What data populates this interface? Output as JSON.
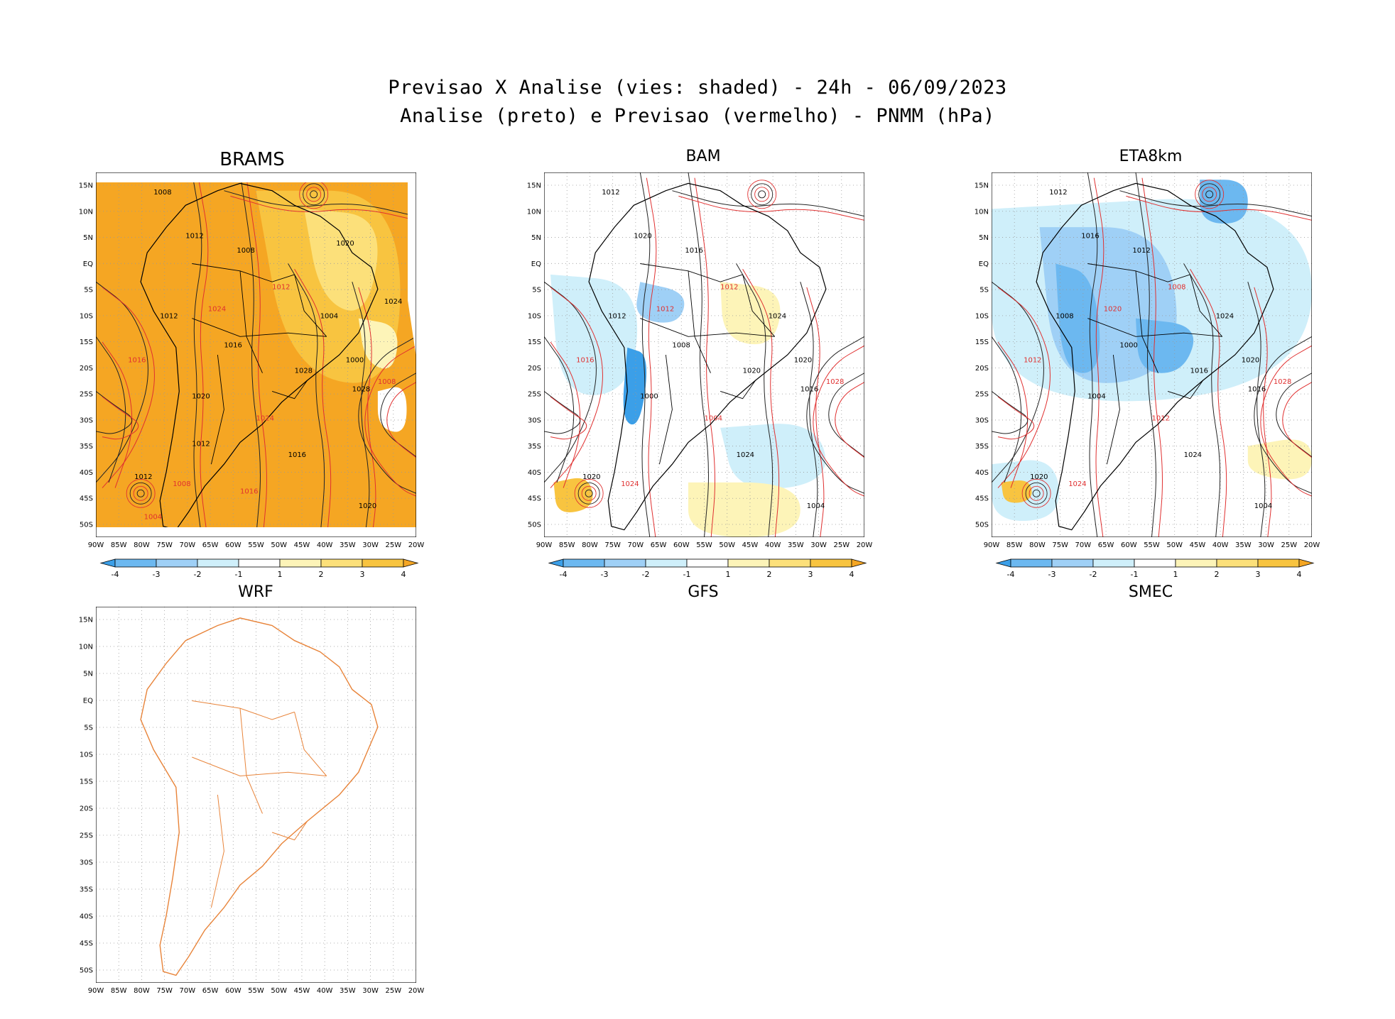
{
  "header": {
    "line1": "Previsao X Analise (vies: shaded) - 24h - 06/09/2023",
    "line2": "Analise (preto) e Previsao (vermelho) - PNMM (hPa)"
  },
  "axes": {
    "lat_labels": [
      "15N",
      "10N",
      "5N",
      "EQ",
      "5S",
      "10S",
      "15S",
      "20S",
      "25S",
      "30S",
      "35S",
      "40S",
      "45S",
      "50S"
    ],
    "lon_labels": [
      "90W",
      "85W",
      "80W",
      "75W",
      "70W",
      "65W",
      "60W",
      "55W",
      "50W",
      "45W",
      "40W",
      "35W",
      "30W",
      "25W",
      "20W"
    ]
  },
  "colorbar": {
    "ticks": [
      "-4",
      "-3",
      "-2",
      "-1",
      "1",
      "2",
      "3",
      "4"
    ],
    "colors": [
      "#3b9fe8",
      "#6cb8f0",
      "#9fd0f6",
      "#cfeffa",
      "#ffffff",
      "#fdf4b8",
      "#fce07a",
      "#f8c440",
      "#f5a623"
    ]
  },
  "panels": [
    {
      "id": "brams",
      "title": "BRAMS",
      "bg": "#f5a623",
      "labels": [
        "1008",
        "1012",
        "1016",
        "1012",
        "1008",
        "1012",
        "1016",
        "1020",
        "1024",
        "1028",
        "1012",
        "1008",
        "1004",
        "1000",
        "1008",
        "1016",
        "1020",
        "1024",
        "1028",
        "1012",
        "1016",
        "1020",
        "1024",
        "1004"
      ]
    },
    {
      "id": "bam",
      "title": "BAM",
      "bg": "#ffffff",
      "labels": [
        "1012",
        "1012",
        "1016",
        "1020",
        "1016",
        "1012",
        "1008",
        "1000",
        "1004",
        "1016",
        "1020",
        "1024",
        "1024",
        "1020",
        "1028",
        "1024",
        "1004",
        "1012",
        "1020"
      ]
    },
    {
      "id": "eta",
      "title": "ETA8km",
      "bg": "#ffffff",
      "labels": [
        "1012",
        "1008",
        "1012",
        "1016",
        "1012",
        "1008",
        "1000",
        "1004",
        "1012",
        "1016",
        "1020",
        "1024",
        "1024",
        "1020",
        "1028",
        "1024",
        "1004",
        "1020",
        "1016"
      ]
    },
    {
      "id": "wrf",
      "title": "WRF",
      "bg": "#ffffff",
      "labels": []
    }
  ],
  "bottom_titles": {
    "gfs": "GFS",
    "smec": "SMEC"
  }
}
